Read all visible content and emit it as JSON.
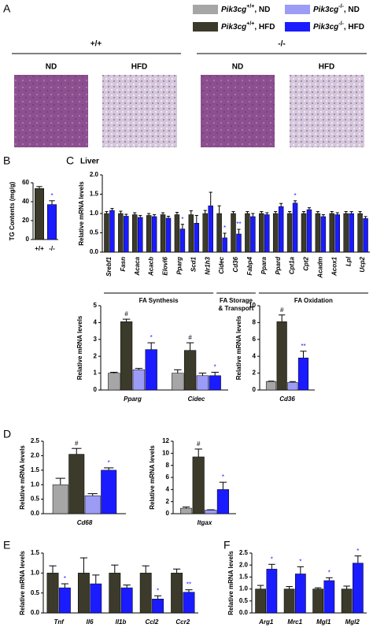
{
  "legend": [
    {
      "color": "#a6a6a6",
      "gene": "Pik3cg",
      "genotype": "+/+",
      "diet": ", ND"
    },
    {
      "color": "#3b3a2b",
      "gene": "Pik3cg",
      "genotype": "+/+",
      "diet": ", HFD"
    },
    {
      "color": "#9c9cf7",
      "gene": "Pik3cg",
      "genotype": "-/-",
      "diet": ", ND"
    },
    {
      "color": "#1b1bff",
      "gene": "Pik3cg",
      "genotype": "-/-",
      "diet": ", HFD"
    }
  ],
  "panel_a": {
    "label": "A",
    "genotypes": [
      "+/+",
      "-/-"
    ],
    "diets": [
      "ND",
      "HFD",
      "ND",
      "HFD"
    ]
  },
  "chart_data": [
    {
      "type": "bar",
      "panel": "B",
      "y_label": "TG Contents (mg/g)",
      "categories": [
        "+/+",
        "-/-"
      ],
      "series": [
        {
          "color": [
            "#3b3a2b",
            "#1b1bff"
          ],
          "values": [
            54,
            37
          ],
          "errors": [
            2,
            4
          ],
          "annotations": [
            null,
            "*"
          ]
        }
      ],
      "ylim": [
        0,
        60
      ],
      "yticks": [
        0,
        20,
        40,
        60
      ]
    },
    {
      "type": "bar",
      "panel": "C",
      "title": "Liver",
      "y_label": "Relative mRNA levels",
      "categories": [
        "Srebf1",
        "Fasn",
        "Acaca",
        "Acacb",
        "Elovl6",
        "Pparg",
        "Scd1",
        "Nr1h3",
        "Cidec",
        "Cd36",
        "Fabp4",
        "Ppara",
        "Ppard",
        "Cpt1a",
        "Cpt2",
        "Acadm",
        "Acox1",
        "Lpl",
        "Ucp2"
      ],
      "groups": [
        {
          "label": [
            "FA Synthesis"
          ]
        },
        {
          "label": [
            "FA Storage",
            "& Transport"
          ]
        },
        {
          "label": [
            "FA Oxidation"
          ]
        }
      ],
      "series": [
        {
          "color": "#3b3a2b",
          "values": [
            1.0,
            1.0,
            0.97,
            0.95,
            0.97,
            0.97,
            0.97,
            1.0,
            1.0,
            1.0,
            1.0,
            1.0,
            1.0,
            1.0,
            1.0,
            1.0,
            1.0,
            1.0,
            1.0
          ],
          "errors": [
            0.05,
            0.06,
            0.05,
            0.05,
            0.05,
            0.06,
            0.1,
            0.08,
            0.2,
            0.05,
            0.05,
            0.05,
            0.05,
            0.05,
            0.05,
            0.05,
            0.05,
            0.05,
            0.05
          ]
        },
        {
          "color": "#1b1bff",
          "values": [
            1.08,
            0.93,
            0.9,
            0.92,
            0.88,
            0.6,
            0.75,
            1.2,
            0.37,
            0.47,
            0.92,
            0.97,
            1.18,
            1.27,
            1.1,
            0.92,
            0.97,
            1.0,
            0.87
          ],
          "errors": [
            0.05,
            0.05,
            0.05,
            0.05,
            0.05,
            0.12,
            0.2,
            0.35,
            0.12,
            0.12,
            0.08,
            0.05,
            0.08,
            0.06,
            0.05,
            0.05,
            0.05,
            0.05,
            0.05
          ],
          "annotations": [
            null,
            null,
            null,
            null,
            null,
            "*",
            null,
            null,
            "*",
            "**",
            null,
            null,
            null,
            "*",
            null,
            null,
            null,
            null,
            null
          ]
        }
      ],
      "ylim": [
        0,
        2
      ],
      "yticks": [
        {
          "value": 0,
          "label": "0.0"
        },
        {
          "value": 0.5,
          "label": "0.5"
        },
        {
          "value": 1,
          "label": "1.0"
        },
        {
          "value": 1.5,
          "label": "1.5"
        },
        {
          "value": 2,
          "label": "2.0"
        }
      ]
    },
    {
      "type": "bar",
      "y_label": "Relative mRNA levels",
      "categories": [
        "Pparg",
        "Cidec"
      ],
      "series": [
        {
          "color": "#a6a6a6",
          "values": [
            1.0,
            1.0
          ],
          "errors": [
            0.05,
            0.2
          ]
        },
        {
          "color": "#3b3a2b",
          "values": [
            4.05,
            2.35
          ],
          "errors": [
            0.15,
            0.45
          ],
          "annotations": [
            "#",
            "#"
          ]
        },
        {
          "color": "#9c9cf7",
          "values": [
            1.2,
            0.85
          ],
          "errors": [
            0.08,
            0.15
          ]
        },
        {
          "color": "#1b1bff",
          "values": [
            2.4,
            0.85
          ],
          "errors": [
            0.4,
            0.2
          ],
          "annotations": [
            "*",
            "*"
          ]
        }
      ],
      "ylim": [
        0,
        5
      ],
      "yticks": [
        0,
        1,
        2,
        3,
        4,
        5
      ]
    },
    {
      "type": "bar",
      "y_label": "Relative mRNA levels",
      "categories": [
        "Cd36"
      ],
      "series": [
        {
          "color": "#a6a6a6",
          "values": [
            1.0
          ],
          "errors": [
            0.05
          ]
        },
        {
          "color": "#3b3a2b",
          "values": [
            8.1
          ],
          "errors": [
            0.8
          ],
          "annotations": [
            "#"
          ]
        },
        {
          "color": "#9c9cf7",
          "values": [
            0.9
          ],
          "errors": [
            0.1
          ]
        },
        {
          "color": "#1b1bff",
          "values": [
            3.8
          ],
          "errors": [
            0.8
          ],
          "annotations": [
            "**"
          ]
        }
      ],
      "ylim": [
        0,
        10
      ],
      "yticks": [
        0,
        2,
        4,
        6,
        8,
        10
      ]
    },
    {
      "type": "bar",
      "panel": "D",
      "y_label": "Relative mRNA levels",
      "categories": [
        "Cd68"
      ],
      "series": [
        {
          "color": "#a6a6a6",
          "values": [
            1.0
          ],
          "errors": [
            0.22
          ]
        },
        {
          "color": "#3b3a2b",
          "values": [
            2.05
          ],
          "errors": [
            0.2
          ],
          "annotations": [
            "#"
          ]
        },
        {
          "color": "#9c9cf7",
          "values": [
            0.62
          ],
          "errors": [
            0.07
          ]
        },
        {
          "color": "#1b1bff",
          "values": [
            1.5
          ],
          "errors": [
            0.08
          ],
          "annotations": [
            "*"
          ]
        }
      ],
      "ylim": [
        0,
        2.5
      ],
      "yticks": [
        {
          "value": 0,
          "label": "0.0"
        },
        {
          "value": 0.5,
          "label": "0.5"
        },
        {
          "value": 1,
          "label": "1.0"
        },
        {
          "value": 1.5,
          "label": "1.5"
        },
        {
          "value": 2,
          "label": "2.0"
        },
        {
          "value": 2.5,
          "label": "2.5"
        }
      ]
    },
    {
      "type": "bar",
      "y_label": "Relative mRNA levels",
      "categories": [
        "Itgax"
      ],
      "series": [
        {
          "color": "#a6a6a6",
          "values": [
            0.9
          ],
          "errors": [
            0.2
          ]
        },
        {
          "color": "#3b3a2b",
          "values": [
            9.4
          ],
          "errors": [
            1.3
          ],
          "annotations": [
            "#"
          ]
        },
        {
          "color": "#9c9cf7",
          "values": [
            0.6
          ],
          "errors": [
            0.05
          ]
        },
        {
          "color": "#1b1bff",
          "values": [
            4.0
          ],
          "errors": [
            1.2
          ],
          "annotations": [
            "*"
          ]
        }
      ],
      "ylim": [
        0,
        12
      ],
      "yticks": [
        0,
        2,
        4,
        6,
        8,
        10,
        12
      ]
    },
    {
      "type": "bar",
      "panel": "E",
      "y_label": "Relative mRNA levels",
      "categories": [
        "Tnf",
        "Il6",
        "Il1b",
        "Ccl2",
        "Ccr2"
      ],
      "series": [
        {
          "color": "#3b3a2b",
          "values": [
            1.0,
            1.0,
            1.0,
            1.0,
            1.0
          ],
          "errors": [
            0.18,
            0.38,
            0.2,
            0.18,
            0.1
          ]
        },
        {
          "color": "#1b1bff",
          "values": [
            0.63,
            0.73,
            0.63,
            0.35,
            0.52
          ],
          "errors": [
            0.1,
            0.22,
            0.07,
            0.08,
            0.06
          ],
          "annotations": [
            "*",
            null,
            null,
            "*",
            "**"
          ]
        }
      ],
      "ylim": [
        0,
        1.5
      ],
      "yticks": [
        {
          "value": 0,
          "label": "0.0"
        },
        {
          "value": 0.5,
          "label": "0.5"
        },
        {
          "value": 1,
          "label": "1.0"
        },
        {
          "value": 1.5,
          "label": "1.5"
        }
      ]
    },
    {
      "type": "bar",
      "panel": "F",
      "y_label": "Relative mRNA levels",
      "categories": [
        "Arg1",
        "Mrc1",
        "Mgl1",
        "Mgl2"
      ],
      "series": [
        {
          "color": "#3b3a2b",
          "values": [
            1.0,
            1.0,
            1.0,
            1.0
          ],
          "errors": [
            0.15,
            0.1,
            0.05,
            0.12
          ]
        },
        {
          "color": "#1b1bff",
          "values": [
            1.83,
            1.63,
            1.35,
            2.08
          ],
          "errors": [
            0.2,
            0.3,
            0.12,
            0.3
          ],
          "annotations": [
            "*",
            "*",
            "*",
            "*"
          ]
        }
      ],
      "ylim": [
        0,
        2.5
      ],
      "yticks": [
        {
          "value": 0,
          "label": "0.0"
        },
        {
          "value": 0.5,
          "label": "0.5"
        },
        {
          "value": 1,
          "label": "1.0"
        },
        {
          "value": 1.5,
          "label": "1.5"
        },
        {
          "value": 2,
          "label": "2.0"
        },
        {
          "value": 2.5,
          "label": "2.5"
        }
      ]
    }
  ]
}
